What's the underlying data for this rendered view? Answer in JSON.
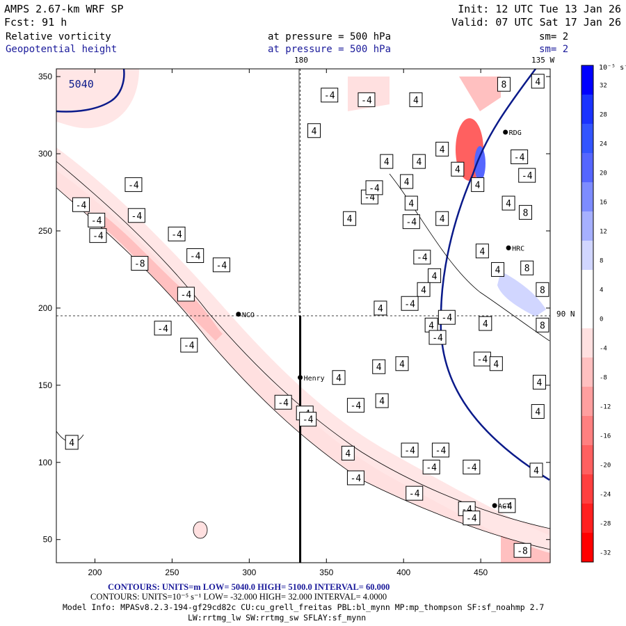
{
  "header": {
    "model": "AMPS 2.67-km WRF SP",
    "forecast": "Fcst:    91 h",
    "init": "Init: 12 UTC Tue 13 Jan 26",
    "valid": "Valid: 07 UTC Sat 17 Jan 26",
    "field1": "Relative vorticity",
    "field1_level": "at pressure =  500 hPa",
    "field1_sm": "sm= 2",
    "field2": "Geopotential height",
    "field2_level": "at pressure =  500 hPa",
    "field2_sm": "sm= 2"
  },
  "colors": {
    "text": "#000000",
    "blue_text": "#1a1a9a",
    "height_contour": "#0a1a8a",
    "vort_contour": "#000000"
  },
  "map": {
    "lon_label_180": "180",
    "lon_label_135w": "135 W",
    "lat_label_90n": "90 N",
    "stations": [
      "NCO",
      "Henry",
      "RDG",
      "HRC",
      "AGT"
    ],
    "height_label": "5040"
  },
  "chart_data": {
    "type": "heatmap",
    "title": "Relative vorticity at 500 hPa with geopotential height contours",
    "xlabel": "",
    "ylabel": "",
    "xlim": [
      175,
      495
    ],
    "ylim": [
      35,
      355
    ],
    "x_ticks": [
      200,
      250,
      300,
      350,
      400,
      450
    ],
    "y_ticks": [
      50,
      100,
      150,
      200,
      250,
      300,
      350
    ],
    "colorbar": {
      "unit": "10⁻⁵ s⁻¹",
      "ticks": [
        32,
        28,
        24,
        20,
        16,
        12,
        8,
        4,
        0,
        -4,
        -8,
        -12,
        -16,
        -20,
        -24,
        -28,
        -32
      ],
      "colors": [
        "#0000ff",
        "#1a33ff",
        "#3355ff",
        "#5566ff",
        "#7d8cff",
        "#a6b0ff",
        "#d1d6ff",
        "#ffffff",
        "#ffffff",
        "#ffe0e0",
        "#ffc0c0",
        "#ff9f9f",
        "#ff8080",
        "#ff6060",
        "#ff3f3f",
        "#ff1f1f",
        "#ff0000"
      ]
    },
    "vorticity_labels": [
      {
        "x": 352,
        "y": 338,
        "t": "-4"
      },
      {
        "x": 376,
        "y": 335,
        "t": "-4"
      },
      {
        "x": 342,
        "y": 315,
        "t": "4"
      },
      {
        "x": 408,
        "y": 335,
        "t": "4"
      },
      {
        "x": 465,
        "y": 345,
        "t": "8"
      },
      {
        "x": 487,
        "y": 347,
        "t": "4"
      },
      {
        "x": 389,
        "y": 295,
        "t": "4"
      },
      {
        "x": 402,
        "y": 282,
        "t": "4"
      },
      {
        "x": 410,
        "y": 295,
        "t": "4"
      },
      {
        "x": 425,
        "y": 303,
        "t": "4"
      },
      {
        "x": 435,
        "y": 290,
        "t": "4"
      },
      {
        "x": 448,
        "y": 280,
        "t": "4"
      },
      {
        "x": 475,
        "y": 298,
        "t": "-4"
      },
      {
        "x": 480,
        "y": 286,
        "t": "-4"
      },
      {
        "x": 378,
        "y": 272,
        "t": "-4"
      },
      {
        "x": 381,
        "y": 278,
        "t": "-4"
      },
      {
        "x": 405,
        "y": 268,
        "t": "4"
      },
      {
        "x": 425,
        "y": 258,
        "t": "4"
      },
      {
        "x": 365,
        "y": 258,
        "t": "4"
      },
      {
        "x": 405,
        "y": 256,
        "t": "-4"
      },
      {
        "x": 468,
        "y": 268,
        "t": "4"
      },
      {
        "x": 479,
        "y": 262,
        "t": "8"
      },
      {
        "x": 191,
        "y": 267,
        "t": "-4"
      },
      {
        "x": 225,
        "y": 280,
        "t": "-4"
      },
      {
        "x": 227,
        "y": 260,
        "t": "-4"
      },
      {
        "x": 201,
        "y": 257,
        "t": "-4"
      },
      {
        "x": 253,
        "y": 248,
        "t": "-4"
      },
      {
        "x": 202,
        "y": 247,
        "t": "-4"
      },
      {
        "x": 265,
        "y": 234,
        "t": "-4"
      },
      {
        "x": 282,
        "y": 228,
        "t": "-4"
      },
      {
        "x": 229,
        "y": 229,
        "t": "-8"
      },
      {
        "x": 412,
        "y": 233,
        "t": "-4"
      },
      {
        "x": 451,
        "y": 237,
        "t": "4"
      },
      {
        "x": 480,
        "y": 226,
        "t": "8"
      },
      {
        "x": 461,
        "y": 225,
        "t": "4"
      },
      {
        "x": 420,
        "y": 221,
        "t": "4"
      },
      {
        "x": 259,
        "y": 209,
        "t": "-4"
      },
      {
        "x": 413,
        "y": 212,
        "t": "4"
      },
      {
        "x": 385,
        "y": 200,
        "t": "4"
      },
      {
        "x": 490,
        "y": 212,
        "t": "8"
      },
      {
        "x": 404,
        "y": 203,
        "t": "-4"
      },
      {
        "x": 428,
        "y": 194,
        "t": "-4"
      },
      {
        "x": 418,
        "y": 189,
        "t": "4"
      },
      {
        "x": 453,
        "y": 190,
        "t": "4"
      },
      {
        "x": 422,
        "y": 181,
        "t": "-4"
      },
      {
        "x": 490,
        "y": 189,
        "t": "8"
      },
      {
        "x": 244,
        "y": 187,
        "t": "-4"
      },
      {
        "x": 261,
        "y": 176,
        "t": "-4"
      },
      {
        "x": 399,
        "y": 164,
        "t": "4"
      },
      {
        "x": 451,
        "y": 167,
        "t": "-4"
      },
      {
        "x": 460,
        "y": 164,
        "t": "4"
      },
      {
        "x": 358,
        "y": 155,
        "t": "4"
      },
      {
        "x": 384,
        "y": 162,
        "t": "4"
      },
      {
        "x": 386,
        "y": 140,
        "t": "4"
      },
      {
        "x": 488,
        "y": 152,
        "t": "4"
      },
      {
        "x": 322,
        "y": 139,
        "t": "-4"
      },
      {
        "x": 369,
        "y": 137,
        "t": "-4"
      },
      {
        "x": 336,
        "y": 132,
        "t": "-4"
      },
      {
        "x": 487,
        "y": 133,
        "t": "4"
      },
      {
        "x": 338,
        "y": 128,
        "t": "-4"
      },
      {
        "x": 404,
        "y": 108,
        "t": "-4"
      },
      {
        "x": 424,
        "y": 108,
        "t": "-4"
      },
      {
        "x": 444,
        "y": 97,
        "t": "-4"
      },
      {
        "x": 418,
        "y": 97,
        "t": "-4"
      },
      {
        "x": 486,
        "y": 95,
        "t": "4"
      },
      {
        "x": 364,
        "y": 106,
        "t": "4"
      },
      {
        "x": 185,
        "y": 113,
        "t": "4"
      },
      {
        "x": 407,
        "y": 80,
        "t": "-4"
      },
      {
        "x": 369,
        "y": 90,
        "t": "-4"
      },
      {
        "x": 467,
        "y": 72,
        "t": "-4"
      },
      {
        "x": 441,
        "y": 70,
        "t": "-4"
      },
      {
        "x": 444,
        "y": 64,
        "t": "-4"
      },
      {
        "x": 477,
        "y": 43,
        "t": "-8"
      }
    ],
    "stations": [
      {
        "name": "NCO",
        "x": 293,
        "y": 196
      },
      {
        "name": "Henry",
        "x": 333,
        "y": 155
      },
      {
        "name": "RDG",
        "x": 466,
        "y": 314
      },
      {
        "name": "HRC",
        "x": 468,
        "y": 239
      },
      {
        "name": "AGT",
        "x": 459,
        "y": 72
      }
    ],
    "height_contour_label": {
      "x": 210,
      "y": 345,
      "t": "5040"
    },
    "reference_lines": {
      "lon_180_x": 333,
      "lat_90n_y": 195
    },
    "section_line": {
      "x": 333,
      "y_from": 195,
      "y_to": 35
    }
  },
  "footer": {
    "contours_height": "CONTOURS: UNITS=m  LOW=  5040.0       HIGH=  5100.0       INTERVAL=   60.000",
    "contours_vort": "CONTOURS:  UNITS=10⁻⁵ s⁻¹  LOW=  -32.000          HIGH=  32.000           INTERVAL=    4.0000",
    "model_info": "Model Info: MPASv8.2.3-194-gf29cd82c CU:cu_grell_freitas PBL:bl_mynn MP:mp_thompson SF:sf_noahmp 2.7",
    "model_info2": "LW:rrtmg_lw SW:rrtmg_sw SFLAY:sf_mynn"
  }
}
